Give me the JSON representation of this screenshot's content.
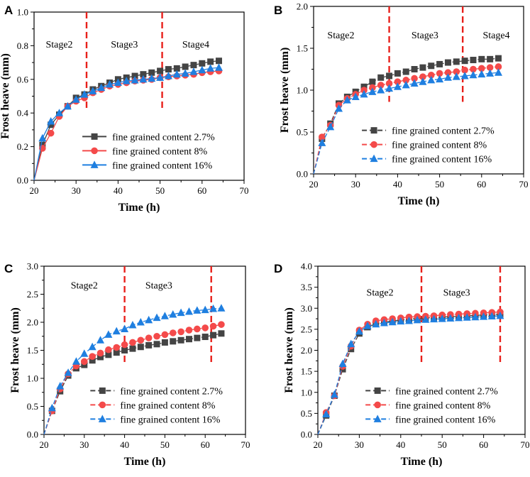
{
  "colors": {
    "s27": "#444444",
    "s8": "#f44a4a",
    "s16": "#1f7fe0",
    "divider": "#e8201b",
    "axis": "#000000"
  },
  "chart_data": [
    {
      "panel": "A",
      "type": "scatter",
      "xlabel": "Time (h)",
      "ylabel": "Frost heave (mm)",
      "xlim": [
        20,
        70
      ],
      "ylim": [
        0,
        1.0
      ],
      "xticks": [
        20,
        30,
        40,
        50,
        60,
        70
      ],
      "yticks": [
        0.0,
        0.2,
        0.4,
        0.6,
        0.8,
        1.0
      ],
      "tick_decimals": 1,
      "dividers": [
        32.5,
        50.5
      ],
      "stage_labels": [
        {
          "text": "Stage2",
          "x": 26,
          "y": 0.79
        },
        {
          "text": "Stage3",
          "x": 41.5,
          "y": 0.79
        },
        {
          "text": "Stage4",
          "x": 58.5,
          "y": 0.79
        }
      ],
      "series": [
        {
          "name": "fine grained content 2.7%",
          "marker": "square",
          "color_key": "s27",
          "line": "solid",
          "x": [
            20,
            22,
            24,
            26,
            28,
            30,
            32,
            34,
            36,
            38,
            40,
            42,
            44,
            46,
            48,
            50,
            52,
            54,
            56,
            58,
            60,
            62,
            64
          ],
          "y": [
            0,
            0.21,
            0.33,
            0.39,
            0.44,
            0.49,
            0.51,
            0.54,
            0.56,
            0.58,
            0.6,
            0.61,
            0.62,
            0.63,
            0.64,
            0.65,
            0.66,
            0.665,
            0.675,
            0.685,
            0.695,
            0.705,
            0.71
          ]
        },
        {
          "name": "fine grained content 8%",
          "marker": "circle",
          "color_key": "s8",
          "line": "solid",
          "x": [
            20,
            22,
            24,
            26,
            28,
            30,
            32,
            34,
            36,
            38,
            40,
            42,
            44,
            46,
            48,
            50,
            52,
            54,
            56,
            58,
            60,
            62,
            64
          ],
          "y": [
            0,
            0.19,
            0.28,
            0.38,
            0.44,
            0.47,
            0.49,
            0.52,
            0.54,
            0.56,
            0.57,
            0.58,
            0.59,
            0.595,
            0.6,
            0.61,
            0.615,
            0.62,
            0.625,
            0.63,
            0.64,
            0.645,
            0.65
          ]
        },
        {
          "name": "fine grained content 16%",
          "marker": "triangle",
          "color_key": "s16",
          "line": "solid",
          "x": [
            20,
            22,
            24,
            26,
            28,
            30,
            32,
            34,
            36,
            38,
            40,
            42,
            44,
            46,
            48,
            50,
            52,
            54,
            56,
            58,
            60,
            62,
            64
          ],
          "y": [
            0,
            0.25,
            0.35,
            0.4,
            0.44,
            0.48,
            0.51,
            0.53,
            0.55,
            0.57,
            0.58,
            0.59,
            0.595,
            0.6,
            0.605,
            0.61,
            0.62,
            0.63,
            0.635,
            0.645,
            0.655,
            0.665,
            0.67
          ]
        }
      ],
      "legend": "lower-right"
    },
    {
      "panel": "B",
      "type": "scatter",
      "xlabel": "Time (h)",
      "ylabel": "Frost heave (mm)",
      "xlim": [
        20,
        70
      ],
      "ylim": [
        0,
        2.0
      ],
      "xticks": [
        20,
        30,
        40,
        50,
        60,
        70
      ],
      "yticks": [
        0.0,
        0.5,
        1.0,
        1.5,
        2.0
      ],
      "tick_decimals": 1,
      "dividers": [
        38,
        55.5
      ],
      "stage_labels": [
        {
          "text": "Stage2",
          "x": 26.5,
          "y": 1.62
        },
        {
          "text": "Stage3",
          "x": 46.5,
          "y": 1.62
        },
        {
          "text": "Stage4",
          "x": 63.5,
          "y": 1.62
        }
      ],
      "series": [
        {
          "name": "fine grained content 2.7%",
          "marker": "square",
          "color_key": "s27",
          "line": "dashed",
          "x": [
            20,
            22,
            24,
            26,
            28,
            30,
            32,
            34,
            36,
            38,
            40,
            42,
            44,
            46,
            48,
            50,
            52,
            54,
            56,
            58,
            60,
            62,
            64
          ],
          "y": [
            0,
            0.42,
            0.6,
            0.84,
            0.92,
            0.98,
            1.04,
            1.1,
            1.15,
            1.17,
            1.2,
            1.22,
            1.25,
            1.27,
            1.29,
            1.31,
            1.33,
            1.34,
            1.35,
            1.36,
            1.37,
            1.37,
            1.38
          ]
        },
        {
          "name": "fine grained content 8%",
          "marker": "circle",
          "color_key": "s8",
          "line": "dashed",
          "x": [
            20,
            22,
            24,
            26,
            28,
            30,
            32,
            34,
            36,
            38,
            40,
            42,
            44,
            46,
            48,
            50,
            52,
            54,
            56,
            58,
            60,
            62,
            64
          ],
          "y": [
            0,
            0.44,
            0.58,
            0.82,
            0.9,
            0.95,
            1.0,
            1.03,
            1.06,
            1.08,
            1.1,
            1.12,
            1.14,
            1.16,
            1.18,
            1.2,
            1.21,
            1.22,
            1.24,
            1.25,
            1.26,
            1.27,
            1.28
          ]
        },
        {
          "name": "fine grained content 16%",
          "marker": "triangle",
          "color_key": "s16",
          "line": "dashed",
          "x": [
            20,
            22,
            24,
            26,
            28,
            30,
            32,
            34,
            36,
            38,
            40,
            42,
            44,
            46,
            48,
            50,
            52,
            54,
            56,
            58,
            60,
            62,
            64
          ],
          "y": [
            0,
            0.37,
            0.56,
            0.78,
            0.88,
            0.92,
            0.95,
            0.98,
            1.0,
            1.02,
            1.04,
            1.06,
            1.08,
            1.1,
            1.12,
            1.13,
            1.15,
            1.16,
            1.17,
            1.18,
            1.19,
            1.2,
            1.21
          ]
        }
      ],
      "legend": "lower-right"
    },
    {
      "panel": "C",
      "type": "scatter",
      "xlabel": "Time (h)",
      "ylabel": "Frost heave (mm)",
      "xlim": [
        20,
        70
      ],
      "ylim": [
        0,
        3.0
      ],
      "xticks": [
        20,
        30,
        40,
        50,
        60,
        70
      ],
      "yticks": [
        0.0,
        0.5,
        1.0,
        1.5,
        2.0,
        2.5,
        3.0
      ],
      "tick_decimals": 1,
      "dividers": [
        40,
        61.5
      ],
      "stage_labels": [
        {
          "text": "Stage2",
          "x": 30,
          "y": 2.6
        },
        {
          "text": "Stage3",
          "x": 48.5,
          "y": 2.6
        }
      ],
      "series": [
        {
          "name": "fine grained content 2.7%",
          "marker": "square",
          "color_key": "s27",
          "line": "dashed",
          "x": [
            20,
            22,
            24,
            26,
            28,
            30,
            32,
            34,
            36,
            38,
            40,
            42,
            44,
            46,
            48,
            50,
            52,
            54,
            56,
            58,
            60,
            62,
            64
          ],
          "y": [
            0,
            0.42,
            0.77,
            1.05,
            1.18,
            1.24,
            1.32,
            1.38,
            1.42,
            1.46,
            1.5,
            1.53,
            1.56,
            1.59,
            1.61,
            1.64,
            1.66,
            1.68,
            1.7,
            1.72,
            1.74,
            1.77,
            1.8
          ]
        },
        {
          "name": "fine grained content 8%",
          "marker": "circle",
          "color_key": "s8",
          "line": "dashed",
          "x": [
            20,
            22,
            24,
            26,
            28,
            30,
            32,
            34,
            36,
            38,
            40,
            42,
            44,
            46,
            48,
            50,
            52,
            54,
            56,
            58,
            60,
            62,
            64
          ],
          "y": [
            0,
            0.42,
            0.81,
            1.08,
            1.22,
            1.3,
            1.39,
            1.45,
            1.51,
            1.55,
            1.6,
            1.64,
            1.68,
            1.72,
            1.75,
            1.78,
            1.81,
            1.83,
            1.86,
            1.88,
            1.9,
            1.93,
            1.96
          ]
        },
        {
          "name": "fine grained content 16%",
          "marker": "triangle",
          "color_key": "s16",
          "line": "dashed",
          "x": [
            20,
            22,
            24,
            26,
            28,
            30,
            32,
            34,
            36,
            38,
            40,
            42,
            44,
            46,
            48,
            50,
            52,
            54,
            56,
            58,
            60,
            62,
            64
          ],
          "y": [
            0,
            0.47,
            0.86,
            1.1,
            1.3,
            1.44,
            1.56,
            1.68,
            1.78,
            1.84,
            1.88,
            1.95,
            2.0,
            2.04,
            2.08,
            2.11,
            2.14,
            2.17,
            2.19,
            2.21,
            2.22,
            2.24,
            2.25
          ]
        }
      ],
      "legend": "lower-right"
    },
    {
      "panel": "D",
      "type": "scatter",
      "xlabel": "Time (h)",
      "ylabel": "Frost heave (mm)",
      "xlim": [
        20,
        70
      ],
      "ylim": [
        0,
        4.0
      ],
      "xticks": [
        20,
        30,
        40,
        50,
        60,
        70
      ],
      "yticks": [
        0.0,
        0.5,
        1.0,
        1.5,
        2.0,
        2.5,
        3.0,
        3.5,
        4.0
      ],
      "tick_decimals": 1,
      "dividers": [
        45,
        64
      ],
      "stage_labels": [
        {
          "text": "Stage2",
          "x": 35,
          "y": 3.3
        },
        {
          "text": "Stage3",
          "x": 53.5,
          "y": 3.3
        }
      ],
      "series": [
        {
          "name": "fine grained content 2.7%",
          "marker": "square",
          "color_key": "s27",
          "line": "dashed",
          "x": [
            20,
            22,
            24,
            26,
            28,
            30,
            32,
            34,
            36,
            38,
            40,
            42,
            44,
            46,
            48,
            50,
            52,
            54,
            56,
            58,
            60,
            62,
            64
          ],
          "y": [
            0,
            0.45,
            0.92,
            1.55,
            2.03,
            2.4,
            2.55,
            2.63,
            2.67,
            2.7,
            2.72,
            2.74,
            2.76,
            2.77,
            2.78,
            2.79,
            2.8,
            2.81,
            2.82,
            2.83,
            2.84,
            2.85,
            2.86
          ]
        },
        {
          "name": "fine grained content 8%",
          "marker": "circle",
          "color_key": "s8",
          "line": "dashed",
          "x": [
            20,
            22,
            24,
            26,
            28,
            30,
            32,
            34,
            36,
            38,
            40,
            42,
            44,
            46,
            48,
            50,
            52,
            54,
            56,
            58,
            60,
            62,
            64
          ],
          "y": [
            0,
            0.52,
            0.92,
            1.62,
            2.1,
            2.48,
            2.62,
            2.7,
            2.73,
            2.75,
            2.77,
            2.79,
            2.8,
            2.81,
            2.82,
            2.84,
            2.85,
            2.86,
            2.87,
            2.88,
            2.89,
            2.9,
            2.91
          ]
        },
        {
          "name": "fine grained content 16%",
          "marker": "triangle",
          "color_key": "s16",
          "line": "dashed",
          "x": [
            20,
            22,
            24,
            26,
            28,
            30,
            32,
            34,
            36,
            38,
            40,
            42,
            44,
            46,
            48,
            50,
            52,
            54,
            56,
            58,
            60,
            62,
            64
          ],
          "y": [
            0,
            0.48,
            0.95,
            1.68,
            2.15,
            2.45,
            2.58,
            2.62,
            2.65,
            2.67,
            2.69,
            2.7,
            2.72,
            2.73,
            2.74,
            2.75,
            2.76,
            2.77,
            2.78,
            2.79,
            2.8,
            2.81,
            2.82
          ]
        }
      ],
      "legend": "lower-right"
    }
  ]
}
